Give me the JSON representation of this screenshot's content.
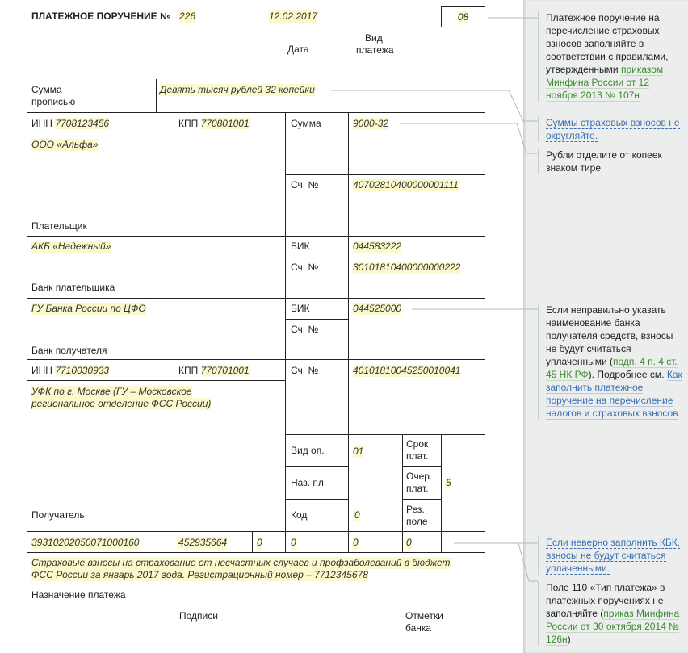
{
  "form": {
    "title": "ПЛАТЕЖНОЕ ПОРУЧЕНИЕ №",
    "number": "226",
    "date": "12.02.2017",
    "date_label": "Дата",
    "payment_type_label_1": "Вид",
    "payment_type_label_2": "платежа",
    "status_box": "08",
    "amount_words_label_1": "Сумма",
    "amount_words_label_2": "прописью",
    "amount_words": "Девять тысяч рублей 32 копейки",
    "payer": {
      "inn_label": "ИНН",
      "inn": "7708123456",
      "kpp_label": "КПП",
      "kpp": "770801001",
      "name": "ООО «Альфа»",
      "label": "Плательщик",
      "amount_label": "Сумма",
      "amount": "9000-32",
      "account_label": "Сч. №",
      "account": "40702810400000001111"
    },
    "payer_bank": {
      "name": "АКБ «Надежный»",
      "label": "Банк плательщика",
      "bik_label": "БИК",
      "bik": "044583222",
      "account_label": "Сч. №",
      "account": "30101810400000000222"
    },
    "recipient_bank": {
      "name": "ГУ Банка России по ЦФО",
      "label": "Банк получателя",
      "bik_label": "БИК",
      "bik": "044525000",
      "account_label": "Сч. №"
    },
    "recipient": {
      "inn_label": "ИНН",
      "inn": "7710030933",
      "kpp_label": "КПП",
      "kpp": "770701001",
      "name_1": "УФК по г. Москве (ГУ – Московское",
      "name_2": "региональное отделение ФСС России)",
      "label": "Получатель",
      "account_label": "Сч. №",
      "account": "40101810045250010041",
      "op_type_label": "Вид оп.",
      "op_type": "01",
      "purpose_code_label": "Наз. пл.",
      "code_label": "Код",
      "code": "0",
      "due_label_1": "Срок",
      "due_label_2": "плат.",
      "priority_label_1": "Очер.",
      "priority_label_2": "плат.",
      "priority": "5",
      "reserve_label_1": "Рез.",
      "reserve_label_2": "поле"
    },
    "kbk_row": [
      "39310202050071000160",
      "452935664",
      "0",
      "0",
      "0",
      "0"
    ],
    "purpose_1": "Страховые взносы на страхование от несчастных случаев и профзаболеваний в бюджет",
    "purpose_2": "ФСС России за январь 2017 года. Регистрационный номер – 7712345678",
    "purpose_label": "Назначение платежа",
    "signatures_label": "Подписи",
    "bank_marks_label_1": "Отметки",
    "bank_marks_label_2": "банка"
  },
  "notes": {
    "n1_text": "Платежное поручение на перечисление страховых взносов заполняйте в соответствии с правилами, утвержденными ",
    "n1_link": "приказом Минфина России от 12 ноября 2013 № 107н",
    "n2_link": "Суммы страховых взносов не округляйте.",
    "n3_text": "Рубли отделите от копеек знаком тире",
    "n4_text_1": "Если неправильно указать наименование банка получателя средств, взносы не будут считаться уплаченными (",
    "n4_link_1": "подп. 4 п. 4 ст. 45 НК РФ",
    "n4_text_2": "). Подробнее см. ",
    "n4_link_2": "Как заполнить платежное поручение на перечисление налогов и страховых взносов",
    "n5_link": "Если неверно заполнить КБК, взносы не будут считаться уплаченными.",
    "n6_text_1": "Поле 110 «Тип платежа» в платежных поручениях не заполняйте (",
    "n6_link": "приказ Минфина России от 30 октября 2014 № 126н",
    "n6_text_2": ")"
  },
  "colors": {
    "highlight": "#fcf9cc",
    "panel": "#eceeee",
    "green_link": "#3d8a2f",
    "blue_link": "#3a6fb0"
  }
}
